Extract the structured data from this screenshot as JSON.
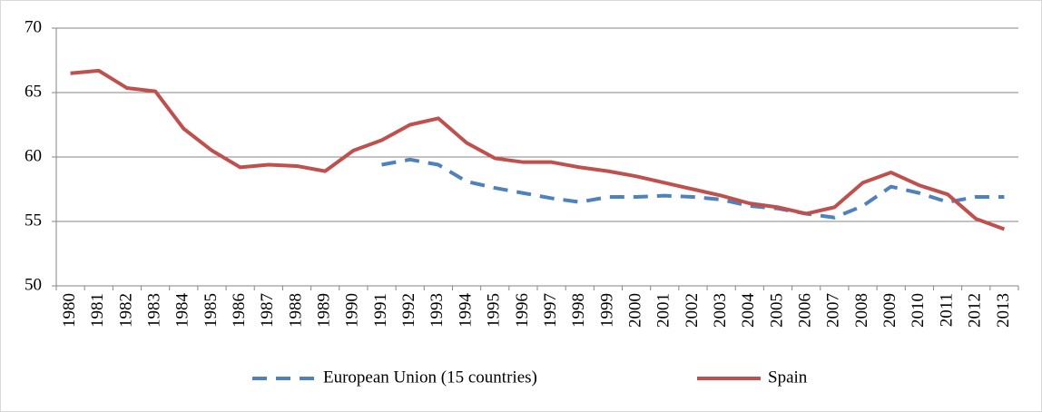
{
  "chart_data": {
    "type": "line",
    "categories": [
      "1980",
      "1981",
      "1982",
      "1983",
      "1984",
      "1985",
      "1986",
      "1987",
      "1988",
      "1989",
      "1990",
      "1991",
      "1992",
      "1993",
      "1994",
      "1995",
      "1996",
      "1997",
      "1998",
      "1999",
      "2000",
      "2001",
      "2002",
      "2003",
      "2004",
      "2005",
      "2006",
      "2007",
      "2008",
      "2009",
      "2010",
      "2011",
      "2012",
      "2013"
    ],
    "series": [
      {
        "name": "European Union (15 countries)",
        "color": "#4f81bd",
        "dashed": true,
        "values": [
          null,
          null,
          null,
          null,
          null,
          null,
          null,
          null,
          null,
          null,
          null,
          59.4,
          59.8,
          59.4,
          58.1,
          57.6,
          57.2,
          56.8,
          56.5,
          56.9,
          56.9,
          57.0,
          56.9,
          56.7,
          56.2,
          56.0,
          55.6,
          55.3,
          56.2,
          57.7,
          57.2,
          56.5,
          56.9,
          56.9
        ]
      },
      {
        "name": "Spain",
        "color": "#c0504d",
        "dashed": false,
        "values": [
          66.5,
          66.7,
          65.35,
          65.1,
          62.2,
          60.5,
          59.2,
          59.4,
          59.3,
          58.9,
          60.5,
          61.3,
          62.5,
          63.0,
          61.1,
          59.9,
          59.6,
          59.6,
          59.2,
          58.9,
          58.5,
          58.0,
          57.5,
          57.0,
          56.4,
          56.1,
          55.6,
          56.1,
          58.0,
          58.8,
          57.8,
          57.1,
          55.2,
          54.4
        ]
      }
    ],
    "ylim": [
      50,
      70
    ],
    "yticks": [
      50,
      55,
      60,
      65,
      70
    ],
    "grid": true,
    "legend": "bottom"
  }
}
